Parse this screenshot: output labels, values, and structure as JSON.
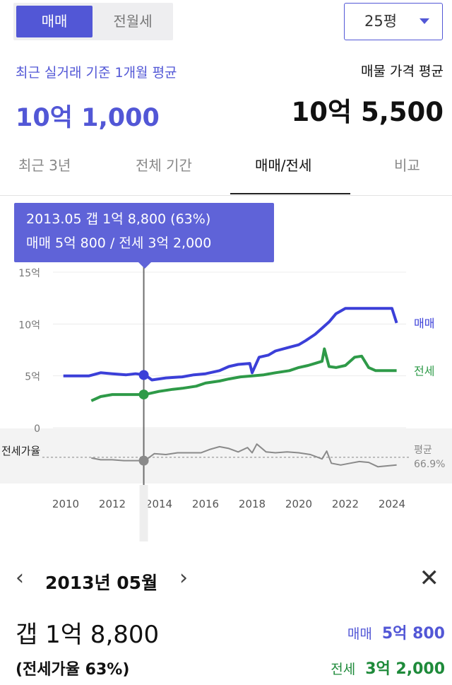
{
  "trade_toggle": {
    "active": "매매",
    "inactive": "전월세"
  },
  "area_select": {
    "value": "25평"
  },
  "summary": {
    "recent_label": "최근 실거래 기준 1개월 평균",
    "recent_price": "10억 1,000",
    "listing_label": "매물 가격 평균",
    "listing_price": "10억 5,500"
  },
  "tabs": [
    "최근 3년",
    "전체 기간",
    "매매/전세",
    "비교"
  ],
  "active_tab": "매매/전세",
  "tooltip": {
    "line1": "2013.05  갭 1억 8,800 (63%)",
    "line2": "매매 5억 800 / 전세 3억 2,000"
  },
  "colors": {
    "accent": "#5257d6",
    "sale": "#3b3fd8",
    "lease": "#2e9a48",
    "ratio": "#8a8a8a"
  },
  "chart_data": {
    "type": "line",
    "x_ticks": [
      "2010",
      "2012",
      "2014",
      "2016",
      "2018",
      "2020",
      "2022",
      "2024"
    ],
    "y_ticks": [
      "15억",
      "10억",
      "5억",
      "0"
    ],
    "ratio_axis_label": "전세가율",
    "xlim": [
      2009.5,
      2024.8
    ],
    "ylim": [
      0,
      15
    ],
    "series": [
      {
        "name": "매매",
        "color": "#3b3fd8",
        "x": [
          2009.9,
          2011.0,
          2011.5,
          2012.0,
          2012.6,
          2013.0,
          2013.4,
          2013.7,
          2014.3,
          2015.0,
          2015.5,
          2016.0,
          2016.6,
          2017.0,
          2017.4,
          2017.9,
          2018.0,
          2018.3,
          2018.7,
          2019.0,
          2019.5,
          2020.0,
          2020.3,
          2020.7,
          2021.0,
          2021.3,
          2021.6,
          2022.0,
          2022.5,
          2023.0,
          2023.5,
          2024.0,
          2024.2
        ],
        "y": [
          5.0,
          5.0,
          5.3,
          5.2,
          5.1,
          5.2,
          5.1,
          4.6,
          4.8,
          4.9,
          5.1,
          5.2,
          5.5,
          5.9,
          6.1,
          6.2,
          5.3,
          6.8,
          7.0,
          7.4,
          7.7,
          8.0,
          8.4,
          9.0,
          9.6,
          10.2,
          11.0,
          11.5,
          11.5,
          11.5,
          11.5,
          11.5,
          10.1
        ]
      },
      {
        "name": "전세",
        "color": "#2e9a48",
        "x": [
          2011.1,
          2011.5,
          2012.0,
          2012.6,
          2013.0,
          2013.4,
          2014.0,
          2014.6,
          2015.0,
          2015.6,
          2016.0,
          2016.6,
          2017.0,
          2017.5,
          2018.0,
          2018.5,
          2019.0,
          2019.6,
          2020.0,
          2020.4,
          2020.7,
          2021.0,
          2021.1,
          2021.3,
          2021.6,
          2022.0,
          2022.4,
          2022.7,
          2023.0,
          2023.3,
          2023.6,
          2024.2
        ],
        "y": [
          2.6,
          3.0,
          3.2,
          3.2,
          3.2,
          3.2,
          3.5,
          3.7,
          3.8,
          4.0,
          4.3,
          4.5,
          4.7,
          4.9,
          5.0,
          5.1,
          5.3,
          5.5,
          5.8,
          6.0,
          6.2,
          6.4,
          7.6,
          5.9,
          5.8,
          6.0,
          6.8,
          6.9,
          5.8,
          5.5,
          5.5,
          5.5
        ]
      },
      {
        "name": "전세가율",
        "color": "#8a8a8a",
        "x": [
          2011.1,
          2011.5,
          2012.0,
          2012.5,
          2013.0,
          2013.4,
          2013.8,
          2014.3,
          2014.8,
          2015.3,
          2015.8,
          2016.2,
          2016.6,
          2017.0,
          2017.4,
          2017.8,
          2018.0,
          2018.2,
          2018.6,
          2019.0,
          2019.5,
          2020.0,
          2020.5,
          2021.0,
          2021.2,
          2021.4,
          2021.8,
          2022.2,
          2022.6,
          2023.0,
          2023.4,
          2023.8,
          2024.2
        ],
        "y": [
          66,
          64,
          64,
          63,
          63,
          63,
          71,
          70,
          72,
          72,
          72,
          76,
          79,
          77,
          73,
          78,
          72,
          82,
          73,
          72,
          73,
          72,
          70,
          65,
          74,
          60,
          58,
          60,
          62,
          61,
          56,
          57,
          58
        ]
      }
    ],
    "ratio_average": {
      "label": "평균",
      "value": 66.9,
      "display": "66.9%"
    },
    "selected": {
      "x": 2013.35,
      "sale": 5.08,
      "lease": 3.2,
      "ratio": 63
    },
    "series_labels": {
      "sale": "매매",
      "lease": "전세"
    }
  },
  "detail": {
    "month": "2013년 05월",
    "gap": "갭 1억 8,800",
    "ratio": "(전세가율 63%)",
    "sale_label": "매매",
    "sale_value": "5억 800",
    "lease_label": "전세",
    "lease_value": "3억 2,000"
  },
  "icons": {
    "prev": "chevron-left-icon",
    "next": "chevron-right-icon",
    "close": "close-icon",
    "dropdown": "caret-down-icon"
  }
}
